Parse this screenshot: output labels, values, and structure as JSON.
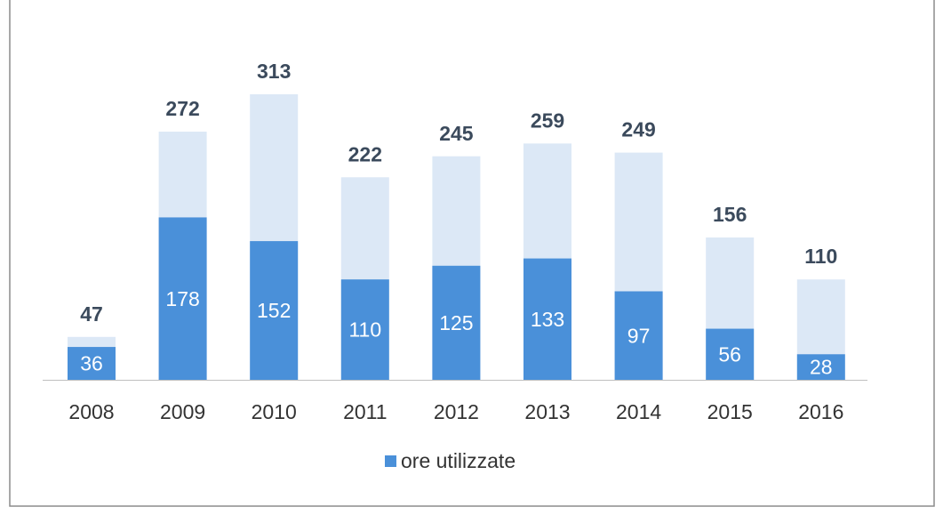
{
  "chart_data": {
    "type": "bar",
    "categories": [
      "2008",
      "2009",
      "2010",
      "2011",
      "2012",
      "2013",
      "2014",
      "2015",
      "2016"
    ],
    "series": [
      {
        "name": "ore utilizzate",
        "color": "#4a90d9",
        "values": [
          36,
          178,
          152,
          110,
          125,
          133,
          97,
          56,
          28
        ]
      }
    ],
    "totals": {
      "color": "#dce8f6",
      "values": [
        47,
        272,
        313,
        222,
        245,
        259,
        249,
        156,
        110
      ]
    },
    "ylim": [
      0,
      350
    ],
    "legend": "bottom"
  }
}
